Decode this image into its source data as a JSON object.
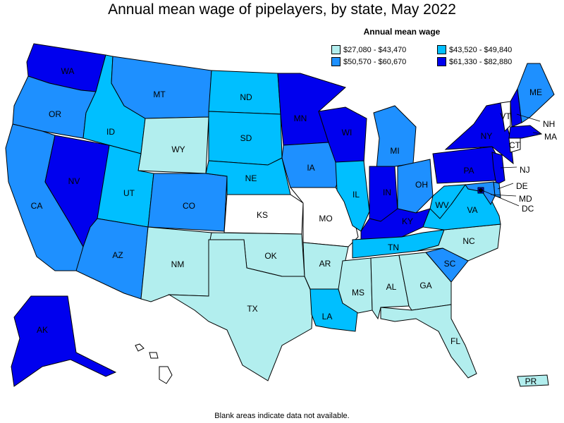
{
  "title": "Annual mean wage of pipelayers, by state, May 2022",
  "legend": {
    "title": "Annual mean wage",
    "items": [
      {
        "label": "$27,080 - $43,470",
        "color": "#b2eeee"
      },
      {
        "label": "$43,520 - $49,840",
        "color": "#00bfff"
      },
      {
        "label": "$50,570 - $60,670",
        "color": "#1e90ff"
      },
      {
        "label": "$61,330 - $82,880",
        "color": "#0000ee"
      }
    ]
  },
  "footnote": "Blank areas indicate data not available.",
  "colors": {
    "q1": "#b2eeee",
    "q2": "#00bfff",
    "q3": "#1e90ff",
    "q4": "#0000ee",
    "na": "#ffffff"
  },
  "states": [
    {
      "abbr": "WA",
      "bin": "q4"
    },
    {
      "abbr": "OR",
      "bin": "q3"
    },
    {
      "abbr": "CA",
      "bin": "q3"
    },
    {
      "abbr": "NV",
      "bin": "q4"
    },
    {
      "abbr": "ID",
      "bin": "q2"
    },
    {
      "abbr": "MT",
      "bin": "q3"
    },
    {
      "abbr": "WY",
      "bin": "q1"
    },
    {
      "abbr": "UT",
      "bin": "q2"
    },
    {
      "abbr": "AZ",
      "bin": "q3"
    },
    {
      "abbr": "CO",
      "bin": "q3"
    },
    {
      "abbr": "NM",
      "bin": "q1"
    },
    {
      "abbr": "ND",
      "bin": "q2"
    },
    {
      "abbr": "SD",
      "bin": "q2"
    },
    {
      "abbr": "NE",
      "bin": "q2"
    },
    {
      "abbr": "KS",
      "bin": "na"
    },
    {
      "abbr": "OK",
      "bin": "q1"
    },
    {
      "abbr": "TX",
      "bin": "q1"
    },
    {
      "abbr": "MN",
      "bin": "q4"
    },
    {
      "abbr": "IA",
      "bin": "q3"
    },
    {
      "abbr": "MO",
      "bin": "na"
    },
    {
      "abbr": "AR",
      "bin": "q1"
    },
    {
      "abbr": "LA",
      "bin": "q2"
    },
    {
      "abbr": "WI",
      "bin": "q4"
    },
    {
      "abbr": "IL",
      "bin": "q2"
    },
    {
      "abbr": "MI",
      "bin": "q3"
    },
    {
      "abbr": "IN",
      "bin": "q4"
    },
    {
      "abbr": "OH",
      "bin": "q3"
    },
    {
      "abbr": "KY",
      "bin": "q4"
    },
    {
      "abbr": "TN",
      "bin": "q2"
    },
    {
      "abbr": "MS",
      "bin": "q1"
    },
    {
      "abbr": "AL",
      "bin": "q1"
    },
    {
      "abbr": "GA",
      "bin": "q1"
    },
    {
      "abbr": "FL",
      "bin": "q1"
    },
    {
      "abbr": "SC",
      "bin": "q3"
    },
    {
      "abbr": "NC",
      "bin": "q1"
    },
    {
      "abbr": "VA",
      "bin": "q2"
    },
    {
      "abbr": "WV",
      "bin": "q2"
    },
    {
      "abbr": "PA",
      "bin": "q4"
    },
    {
      "abbr": "NY",
      "bin": "q4"
    },
    {
      "abbr": "VT",
      "bin": "na"
    },
    {
      "abbr": "NH",
      "bin": "q4"
    },
    {
      "abbr": "ME",
      "bin": "q3"
    },
    {
      "abbr": "MA",
      "bin": "q4"
    },
    {
      "abbr": "CT",
      "bin": "na"
    },
    {
      "abbr": "NJ",
      "bin": "q4"
    },
    {
      "abbr": "DE",
      "bin": "q3"
    },
    {
      "abbr": "MD",
      "bin": "q3"
    },
    {
      "abbr": "DC",
      "bin": "q4"
    },
    {
      "abbr": "AK",
      "bin": "q4"
    },
    {
      "abbr": "HI",
      "bin": "na"
    },
    {
      "abbr": "PR",
      "bin": "q1"
    }
  ]
}
